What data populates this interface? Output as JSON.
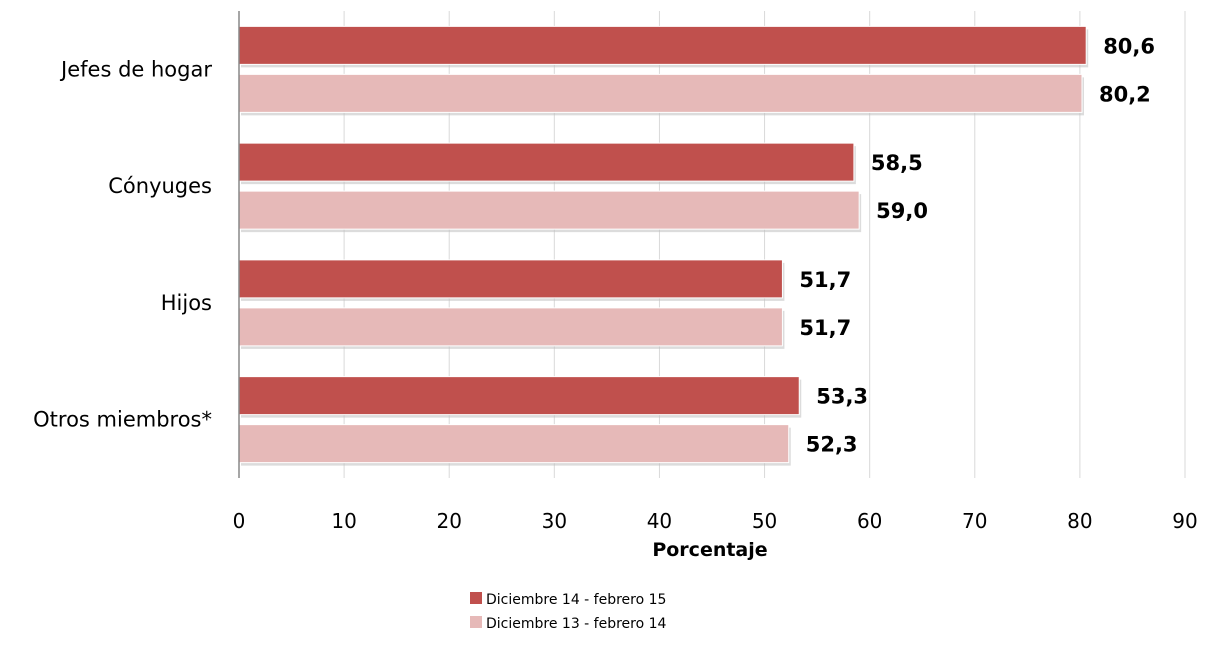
{
  "chart_data": {
    "type": "bar",
    "orientation": "horizontal",
    "categories": [
      "Jefes de hogar",
      "Cónyuges",
      "Hijos",
      "Otros miembros*"
    ],
    "series": [
      {
        "name": "Diciembre 14 - febrero 15",
        "values": [
          80.6,
          58.5,
          51.7,
          53.3
        ],
        "labels": [
          "80,6",
          "58,5",
          "51,7",
          "53,3"
        ],
        "color": "#C0504D"
      },
      {
        "name": "Diciembre 13 - febrero 14",
        "values": [
          80.2,
          59.0,
          51.7,
          52.3
        ],
        "labels": [
          "80,2",
          "59,0",
          "51,7",
          "52,3"
        ],
        "color": "#E6B9B8"
      }
    ],
    "title": "",
    "xlabel": "Porcentaje",
    "ylabel": "",
    "xlim": [
      0,
      90
    ],
    "xticks": [
      0,
      10,
      20,
      30,
      40,
      50,
      60,
      70,
      80,
      90
    ],
    "grid": true,
    "legend_position": "bottom"
  }
}
